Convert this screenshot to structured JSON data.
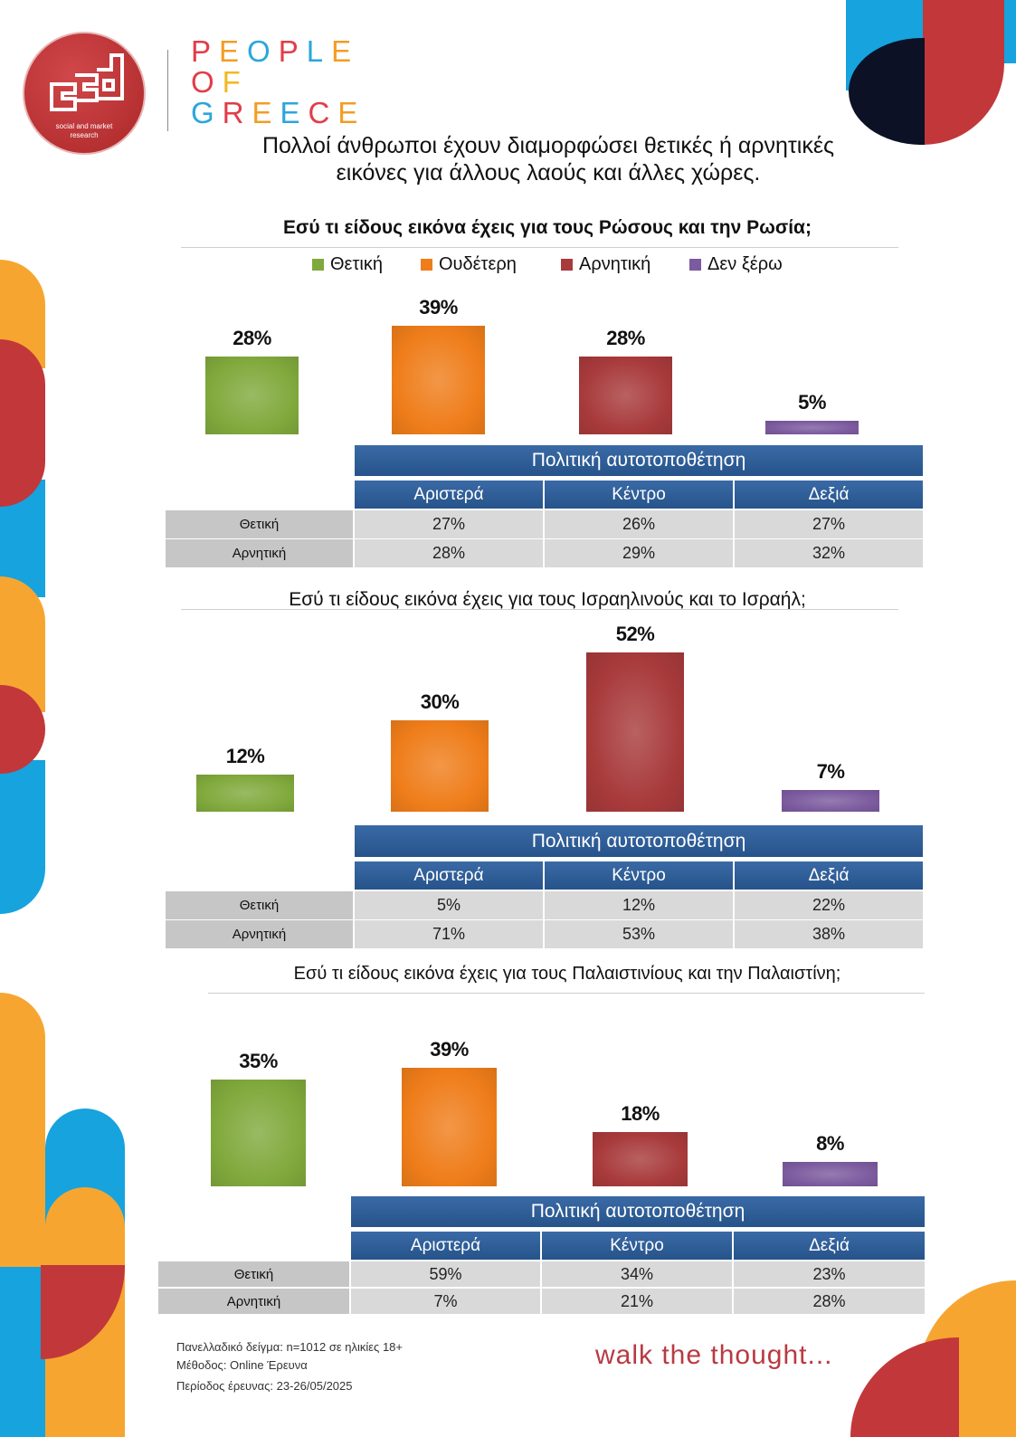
{
  "brand": {
    "logo_text": [
      "social and market",
      "research"
    ],
    "wordmark": [
      [
        {
          "ch": "P",
          "color": "#e23d48"
        },
        {
          "ch": "E",
          "color": "#f39c24"
        },
        {
          "ch": "O",
          "color": "#2aa6dc"
        },
        {
          "ch": "P",
          "color": "#e23d48"
        },
        {
          "ch": "L",
          "color": "#2aa6dc"
        },
        {
          "ch": "E",
          "color": "#f39c24"
        }
      ],
      [
        {
          "ch": "O",
          "color": "#e23d48"
        },
        {
          "ch": "F",
          "color": "#f3b824"
        }
      ],
      [
        {
          "ch": "G",
          "color": "#2aa6dc"
        },
        {
          "ch": "R",
          "color": "#e23d48"
        },
        {
          "ch": "E",
          "color": "#f39c24"
        },
        {
          "ch": "E",
          "color": "#2aa6dc"
        },
        {
          "ch": "C",
          "color": "#e23d48"
        },
        {
          "ch": "E",
          "color": "#f39c24"
        }
      ]
    ]
  },
  "heading": {
    "lines": [
      "Πολλοί άνθρωποι έχουν διαμορφώσει θετικές ή αρνητικές",
      "εικόνες για άλλους λαούς και άλλες χώρες."
    ]
  },
  "legend": {
    "position": "top",
    "colors": [
      "#80a93c",
      "#ef7d1a",
      "#a83a3b",
      "#7b5a9e"
    ]
  },
  "chart_data": [
    {
      "type": "bar",
      "title": "Εσύ τι είδους εικόνα έχεις για τους Ρώσους και την Ρωσία;",
      "categories": [
        "Θετική",
        "Ουδέτερη",
        "Αρνητική",
        "Δεν ξέρω"
      ],
      "values": [
        28,
        39,
        28,
        5
      ],
      "value_labels": [
        "28%",
        "39%",
        "28%",
        "5%"
      ],
      "table": {
        "title": "Πολιτική αυτοτοποθέτηση",
        "columns": [
          "Αριστερά",
          "Κέντρο",
          "Δεξιά"
        ],
        "rows": [
          {
            "label": "Θετική",
            "values": [
              "27%",
              "26%",
              "27%"
            ]
          },
          {
            "label": "Αρνητική",
            "values": [
              "28%",
              "29%",
              "32%"
            ]
          }
        ]
      }
    },
    {
      "type": "bar",
      "title": "Εσύ τι είδους εικόνα έχεις για τους Ισραηλινούς και το Ισραήλ;",
      "categories": [
        "Θετική",
        "Ουδέτερη",
        "Αρνητική",
        "Δεν ξέρω"
      ],
      "values": [
        12,
        30,
        52,
        7
      ],
      "value_labels": [
        "12%",
        "30%",
        "52%",
        "7%"
      ],
      "table": {
        "title": "Πολιτική αυτοτοποθέτηση",
        "columns": [
          "Αριστερά",
          "Κέντρο",
          "Δεξιά"
        ],
        "rows": [
          {
            "label": "Θετική",
            "values": [
              "5%",
              "12%",
              "22%"
            ]
          },
          {
            "label": "Αρνητική",
            "values": [
              "71%",
              "53%",
              "38%"
            ]
          }
        ]
      }
    },
    {
      "type": "bar",
      "title": "Εσύ τι είδους εικόνα έχεις για τους Παλαιστινίους και την Παλαιστίνη;",
      "categories": [
        "Θετική",
        "Ουδέτερη",
        "Αρνητική",
        "Δεν ξέρω"
      ],
      "values": [
        35,
        39,
        18,
        8
      ],
      "value_labels": [
        "35%",
        "39%",
        "18%",
        "8%"
      ],
      "table": {
        "title": "Πολιτική αυτοτοποθέτηση",
        "columns": [
          "Αριστερά",
          "Κέντρο",
          "Δεξιά"
        ],
        "rows": [
          {
            "label": "Θετική",
            "values": [
              "59%",
              "34%",
              "23%"
            ]
          },
          {
            "label": "Αρνητική",
            "values": [
              "7%",
              "21%",
              "28%"
            ]
          }
        ]
      }
    }
  ],
  "footer": {
    "notes": [
      "Πανελλαδικό δείγμα: n=1012 σε ηλικίες 18+",
      "Μέθοδος: Online Έρευνα",
      "Περίοδος έρευνας:  23-26/05/2025"
    ],
    "tagline": "walk the thought..."
  },
  "colors": {
    "brand_red": "#c2373a",
    "brand_blue": "#16a3de",
    "brand_orange": "#f6a630",
    "navy": "#0c1126",
    "table_blue": "#2f5d95",
    "tagline": "#b93a42"
  }
}
